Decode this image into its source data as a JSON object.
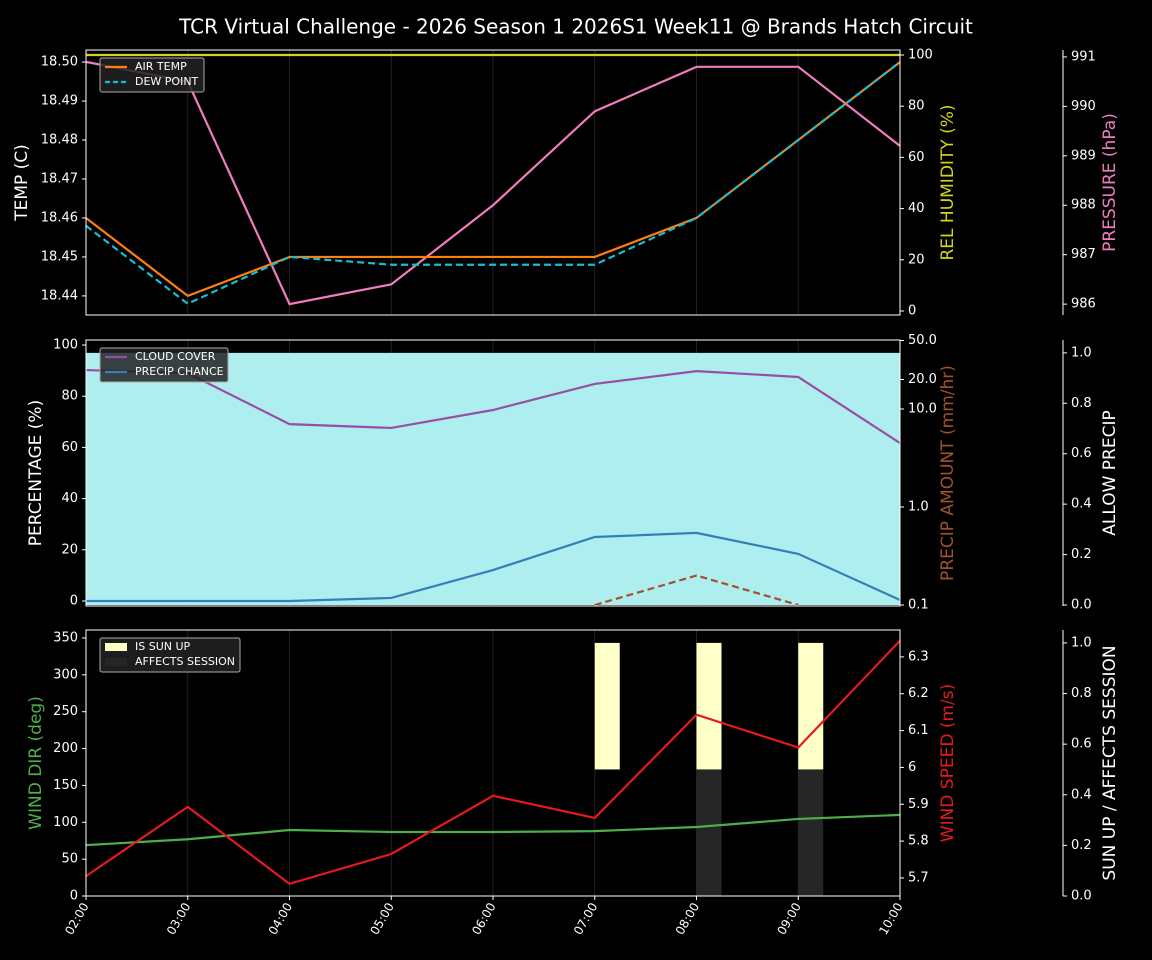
{
  "chart_data": [
    {
      "type": "line",
      "title": "TCR Virtual Challenge - 2026 Season 1 2026S1 Week11 @ Brands Hatch Circuit",
      "ylabel": "TEMP (C)",
      "y2label": "REL HUMIDITY (%)",
      "y3label": "PRESSURE (hPa)",
      "ylim": [
        18.4351,
        18.5031
      ],
      "yticks": [
        18.44,
        18.45,
        18.46,
        18.47,
        18.48,
        18.49,
        {
          "value": 18.5,
          "label": "18.50"
        }
      ],
      "y2lim": [
        -1.56,
        101.95
      ],
      "y2ticks": [
        0,
        20,
        40,
        60,
        80,
        100
      ],
      "y3lim": [
        985.78,
        991.14
      ],
      "y3ticks": [
        986,
        987,
        988,
        989,
        990,
        991
      ],
      "y2color": "#d4d41e",
      "y3color": "#f07cc0",
      "legend": "upper left",
      "grid": true,
      "series": [
        {
          "type": "line",
          "axis": "y2",
          "color": "#d4d41e",
          "values": [
            100,
            100,
            100,
            100,
            100,
            100,
            100,
            100,
            100
          ]
        },
        {
          "type": "line",
          "axis": "y3",
          "color": "#f07cc0",
          "values": [
            990.9,
            990.5,
            986.0,
            986.4,
            988.0,
            989.9,
            990.8,
            990.8,
            989.2
          ]
        },
        {
          "type": "line",
          "name": "AIR TEMP",
          "color": "#ff7f0e",
          "values": [
            18.46,
            18.44,
            18.45,
            18.45,
            18.45,
            18.45,
            18.46,
            18.48,
            18.5
          ]
        },
        {
          "type": "line",
          "name": "DEW POINT",
          "color": "#17becf",
          "dashed": true,
          "values": [
            18.458,
            18.438,
            18.45,
            18.448,
            18.448,
            18.448,
            18.46,
            18.48,
            18.5
          ]
        }
      ]
    },
    {
      "type": "line",
      "ylabel": "PERCENTAGE (%)",
      "y2label": "PRECIP AMOUNT (mm/hr)",
      "y3label": "ALLOW PRECIP",
      "ylim": [
        -1.95,
        101.95
      ],
      "yticks": [
        0,
        20,
        40,
        60,
        80,
        100
      ],
      "y2lim": [
        0.0977,
        50.6
      ],
      "y2log": true,
      "y2ticks": [
        0.1,
        {
          "value": 1,
          "label": "1.0"
        },
        {
          "value": 10,
          "label": "10.0"
        },
        {
          "value": 20,
          "label": "20.0"
        },
        {
          "value": 50,
          "label": "50.0"
        }
      ],
      "y3lim": [
        -0.004,
        1.051
      ],
      "y3ticks": [
        {
          "value": 0,
          "label": "0.0"
        },
        0.2,
        0.4,
        0.6,
        0.8,
        {
          "value": 1,
          "label": "1.0"
        }
      ],
      "y2color": "#a0522d",
      "y3color": "#ffffff",
      "legend": "upper left",
      "grid": true,
      "series": [
        {
          "type": "area",
          "axis": "y3",
          "color": "#afeeee",
          "values": [
            1,
            1,
            1,
            1,
            1,
            1,
            1,
            1,
            1
          ]
        },
        {
          "type": "line",
          "name": "CLOUD COVER",
          "color": "#984ea3",
          "values": [
            90.2,
            89,
            69.1,
            67.6,
            74.6,
            84.8,
            89.8,
            87.5,
            61.7
          ]
        },
        {
          "type": "line",
          "name": "PRECIP CHANCE",
          "color": "#377eb8",
          "values": [
            0,
            0,
            0,
            1.2,
            12.1,
            25,
            26.6,
            18.4,
            0.4
          ]
        },
        {
          "type": "line",
          "axis": "y2",
          "color": "#a0522d",
          "dashed": true,
          "values": [
            null,
            null,
            null,
            null,
            null,
            0.1,
            0.2,
            0.1,
            null
          ]
        }
      ]
    },
    {
      "type": "line",
      "ylabel": "WIND DIR (deg)",
      "y2label": "WIND SPEED (m/s)",
      "y3label": "SUN UP / AFFECTS SESSION",
      "categories": [
        "02:00",
        "03:00",
        "04:00",
        "05:00",
        "06:00",
        "07:00",
        "08:00",
        "09:00",
        "10:00"
      ],
      "ylim": [
        0,
        360.8
      ],
      "yticks": [
        0,
        50,
        100,
        150,
        200,
        250,
        300,
        350
      ],
      "y2lim": [
        5.651,
        6.373
      ],
      "y2ticks": [
        5.7,
        5.8,
        5.9,
        6.0,
        6.1,
        6.2,
        6.3
      ],
      "y3lim": [
        0,
        1.051
      ],
      "y3ticks": [
        {
          "value": 0,
          "label": "0.0"
        },
        0.2,
        0.4,
        0.6,
        0.8,
        {
          "value": 1,
          "label": "1.0"
        }
      ],
      "ycolor": "#4daf4a",
      "y2color": "#e41a1c",
      "y3color": "#ffffff",
      "legend": "upper left",
      "grid": true,
      "series": [
        {
          "type": "bar",
          "axis": "y3",
          "name": "IS SUN UP",
          "color": "#ffffc8",
          "bar_bottom": 0.5,
          "values": [
            null,
            null,
            null,
            null,
            null,
            0.5,
            0.5,
            0.5,
            null
          ]
        },
        {
          "type": "bar",
          "axis": "y3",
          "name": "AFFECTS SESSION",
          "color": "#262626",
          "values": [
            0,
            0,
            0,
            0,
            0,
            0,
            0.5,
            0.5,
            0
          ]
        },
        {
          "type": "line",
          "color": "#4daf4a",
          "values": [
            69,
            77,
            89.5,
            86.8,
            86.8,
            88,
            93.6,
            104.5,
            110
          ]
        },
        {
          "type": "line",
          "axis": "y2",
          "color": "#e41a1c",
          "values": [
            5.705,
            5.893,
            5.684,
            5.765,
            5.923,
            5.863,
            6.143,
            6.054,
            6.344
          ]
        }
      ]
    }
  ]
}
